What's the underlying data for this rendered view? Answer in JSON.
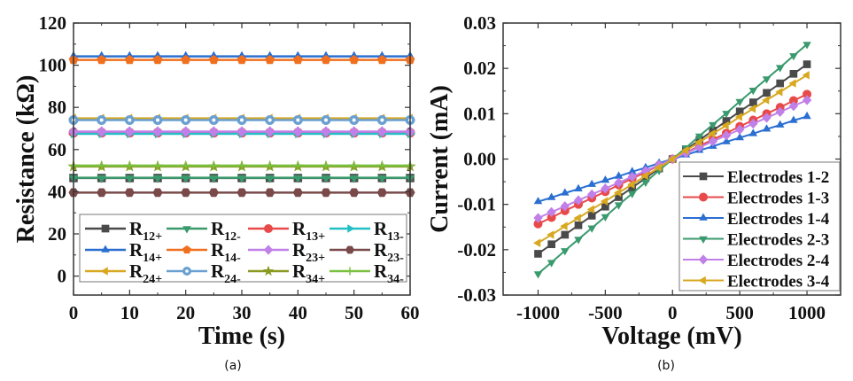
{
  "chart_data": [
    {
      "type": "line",
      "panel_label": "(a)",
      "xlabel": "Time (s)",
      "ylabel": "Resistance (kΩ)",
      "xlim": [
        0,
        60
      ],
      "ylim": [
        -9,
        120
      ],
      "xticks": [
        0,
        10,
        20,
        30,
        40,
        50,
        60
      ],
      "yticks": [
        0,
        20,
        40,
        60,
        80,
        100,
        120
      ],
      "legend_position": "bottom-inside",
      "x": [
        0,
        5,
        10,
        15,
        20,
        25,
        30,
        35,
        40,
        45,
        50,
        55,
        60
      ],
      "series": [
        {
          "name": "R",
          "sub": "12+",
          "value": 46.5,
          "color": "#4a4a4a",
          "marker": "square"
        },
        {
          "name": "R",
          "sub": "12-",
          "value": 46.6,
          "color": "#3a9a6e",
          "marker": "triangle-down"
        },
        {
          "name": "R",
          "sub": "13+",
          "value": 68.0,
          "color": "#e84a4a",
          "marker": "circle"
        },
        {
          "name": "R",
          "sub": "13-",
          "value": 67.5,
          "color": "#22bfc6",
          "marker": "triangle-right"
        },
        {
          "name": "R",
          "sub": "14+",
          "value": 104.2,
          "color": "#2a6fd1",
          "marker": "triangle-up"
        },
        {
          "name": "R",
          "sub": "14-",
          "value": 102.5,
          "color": "#f07020",
          "marker": "pentagon"
        },
        {
          "name": "R",
          "sub": "23+",
          "value": 68.5,
          "color": "#c080e8",
          "marker": "diamond"
        },
        {
          "name": "R",
          "sub": "23-",
          "value": 39.6,
          "color": "#7a4a4a",
          "marker": "hexagon"
        },
        {
          "name": "R",
          "sub": "24+",
          "value": 74.8,
          "color": "#d8a820",
          "marker": "triangle-left"
        },
        {
          "name": "R",
          "sub": "24-",
          "value": 74.0,
          "color": "#6aa0d0",
          "marker": "circle-dot"
        },
        {
          "name": "R",
          "sub": "34+",
          "value": 52.0,
          "color": "#8a9a20",
          "marker": "star"
        },
        {
          "name": "R",
          "sub": "34-",
          "value": 52.4,
          "color": "#7ac040",
          "marker": "plus"
        }
      ]
    },
    {
      "type": "line",
      "panel_label": "(b)",
      "xlabel": "Voltage (mV)",
      "ylabel": "Current (mA)",
      "xlim": [
        -1260,
        1250
      ],
      "ylim": [
        -0.03,
        0.03
      ],
      "xticks": [
        -1000,
        -500,
        0,
        500,
        1000
      ],
      "yticks": [
        -0.03,
        -0.02,
        -0.01,
        0.0,
        0.01,
        0.02,
        0.03
      ],
      "ytick_labels": [
        "-0.03",
        "-0.02",
        "-0.01",
        "0.00",
        "0.01",
        "0.02",
        "0.03"
      ],
      "legend_position": "bottom-right",
      "x": [
        -1000,
        -900,
        -800,
        -700,
        -600,
        -500,
        -400,
        -300,
        -200,
        -100,
        0,
        100,
        200,
        300,
        400,
        500,
        600,
        700,
        800,
        900,
        1000
      ],
      "series": [
        {
          "name": "Electrodes 1-2",
          "color": "#4a4a4a",
          "marker": "square",
          "values": [
            -0.0209,
            -0.0188,
            -0.0167,
            -0.0146,
            -0.0125,
            -0.0105,
            -0.0084,
            -0.0063,
            -0.0042,
            -0.0021,
            0,
            0.0021,
            0.0042,
            0.0063,
            0.0084,
            0.0105,
            0.0125,
            0.0146,
            0.0167,
            0.0188,
            0.0209
          ]
        },
        {
          "name": "Electrodes 1-3",
          "color": "#e84a4a",
          "marker": "circle",
          "values": [
            -0.0143,
            -0.0129,
            -0.0114,
            -0.01,
            -0.0086,
            -0.0072,
            -0.0057,
            -0.0043,
            -0.0029,
            -0.0014,
            0,
            0.0014,
            0.0029,
            0.0043,
            0.0057,
            0.0072,
            0.0086,
            0.01,
            0.0114,
            0.0129,
            0.0143
          ]
        },
        {
          "name": "Electrodes 1-4",
          "color": "#2a6fd1",
          "marker": "triangle-up",
          "values": [
            -0.0094,
            -0.0085,
            -0.0075,
            -0.0066,
            -0.0056,
            -0.0047,
            -0.0038,
            -0.0028,
            -0.0019,
            -0.0009,
            0,
            0.0009,
            0.0019,
            0.0028,
            0.0038,
            0.0047,
            0.0056,
            0.0066,
            0.0075,
            0.0085,
            0.0094
          ]
        },
        {
          "name": "Electrodes 2-3",
          "color": "#3a9a6e",
          "marker": "triangle-down",
          "values": [
            -0.0253,
            -0.0228,
            -0.0202,
            -0.0177,
            -0.0152,
            -0.0127,
            -0.0101,
            -0.0076,
            -0.0051,
            -0.0025,
            0,
            0.0025,
            0.0051,
            0.0076,
            0.0101,
            0.0127,
            0.0152,
            0.0177,
            0.0202,
            0.0228,
            0.0253
          ]
        },
        {
          "name": "Electrodes 2-4",
          "color": "#c080e8",
          "marker": "diamond",
          "values": [
            -0.013,
            -0.0117,
            -0.0104,
            -0.0091,
            -0.0078,
            -0.0065,
            -0.0052,
            -0.0039,
            -0.0026,
            -0.0013,
            0,
            0.0013,
            0.0026,
            0.0039,
            0.0052,
            0.0065,
            0.0078,
            0.0091,
            0.0104,
            0.0117,
            0.013
          ]
        },
        {
          "name": "Electrodes 3-4",
          "color": "#d8a820",
          "marker": "triangle-left",
          "values": [
            -0.0185,
            -0.0167,
            -0.0148,
            -0.013,
            -0.0111,
            -0.0093,
            -0.0074,
            -0.0056,
            -0.0037,
            -0.0019,
            0,
            0.0019,
            0.0037,
            0.0056,
            0.0074,
            0.0093,
            0.0111,
            0.013,
            0.0148,
            0.0167,
            0.0185
          ]
        }
      ]
    }
  ]
}
